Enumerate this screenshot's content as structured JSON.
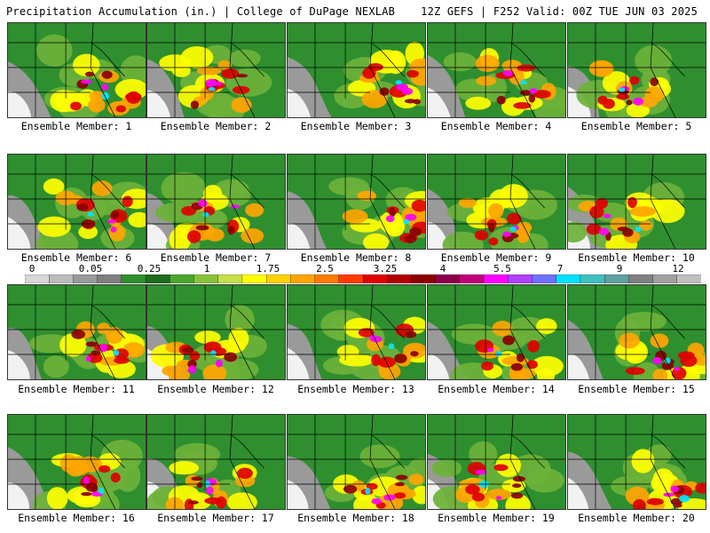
{
  "header": {
    "left": "Precipitation Accumulation (in.) | College of DuPage NEXLAB",
    "right": "12Z GEFS | F252 Valid: 00Z TUE JUN 03 2025"
  },
  "members": [
    {
      "label": "Ensemble Member: 1"
    },
    {
      "label": "Ensemble Member: 2"
    },
    {
      "label": "Ensemble Member: 3"
    },
    {
      "label": "Ensemble Member: 4"
    },
    {
      "label": "Ensemble Member: 5"
    },
    {
      "label": "Ensemble Member: 6"
    },
    {
      "label": "Ensemble Member: 7"
    },
    {
      "label": "Ensemble Member: 8"
    },
    {
      "label": "Ensemble Member: 9"
    },
    {
      "label": "Ensemble Member: 10"
    },
    {
      "label": "Ensemble Member: 11"
    },
    {
      "label": "Ensemble Member: 12"
    },
    {
      "label": "Ensemble Member: 13"
    },
    {
      "label": "Ensemble Member: 14"
    },
    {
      "label": "Ensemble Member: 15"
    },
    {
      "label": "Ensemble Member: 16"
    },
    {
      "label": "Ensemble Member: 17"
    },
    {
      "label": "Ensemble Member: 18"
    },
    {
      "label": "Ensemble Member: 19"
    },
    {
      "label": "Ensemble Member: 20"
    }
  ],
  "colorbar": {
    "labels": [
      "0",
      "0.05",
      "0.25",
      "1",
      "1.75",
      "2.5",
      "3.25",
      "4",
      "5.5",
      "7",
      "9",
      "12"
    ],
    "colors": [
      "#d8d8d8",
      "#bdbdbd",
      "#9a9a9a",
      "#7f7f7f",
      "#2f8f2f",
      "#1e6b1e",
      "#4aa62f",
      "#88c43a",
      "#c8e04a",
      "#ffff00",
      "#ffd200",
      "#ffa500",
      "#ff7a00",
      "#ff3c00",
      "#e00000",
      "#b00000",
      "#8b0000",
      "#8b004a",
      "#c0007a",
      "#ff00ff",
      "#b040ff",
      "#7070ff",
      "#00e0ff",
      "#40c0c0",
      "#60a0a0",
      "#808080",
      "#a0a0a0",
      "#c0c0c0"
    ]
  },
  "palette": {
    "green_dark": "#1e6b1e",
    "green": "#2f8f2f",
    "green_light": "#6cb23a",
    "yellow": "#ffff00",
    "orange": "#ffa500",
    "red": "#e00000",
    "darkred": "#8b0000",
    "magenta": "#ff00ff",
    "purple": "#9a4dff",
    "cyan": "#00e6ff",
    "gray": "#9a9a9a",
    "white": "#f2f2f2",
    "border": "#000000"
  }
}
